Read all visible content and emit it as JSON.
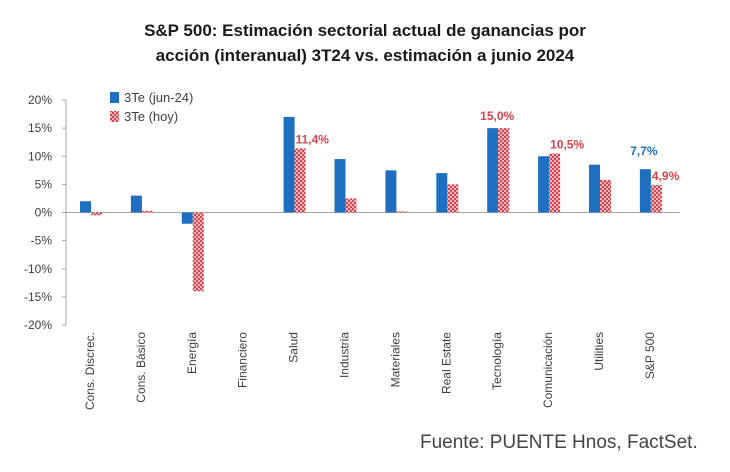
{
  "chart_data": {
    "type": "bar",
    "title_lines": [
      "S&P 500: Estimación sectorial actual de ganancias por",
      "acción (interanual) 3T24 vs. estimación a junio 2024"
    ],
    "categories": [
      "Cons. Discrec.",
      "Cons. Básico",
      "Energía",
      "Financiero",
      "Salud",
      "Industria",
      "Materiales",
      "Real Estate",
      "Tecnología",
      "Comunicación",
      "Utilities",
      "S&P 500"
    ],
    "series": [
      {
        "name": "3Te (jun-24)",
        "color": "#1f6fc0",
        "pattern": "solid",
        "values": [
          2.0,
          3.0,
          -2.0,
          0.0,
          17.0,
          9.5,
          7.5,
          7.0,
          15.0,
          10.0,
          8.5,
          7.7
        ]
      },
      {
        "name": "3Te (hoy)",
        "color": "#d7434d",
        "pattern": "checker",
        "values": [
          -0.5,
          0.3,
          -14.0,
          0.0,
          11.4,
          2.5,
          0.2,
          5.0,
          15.0,
          10.5,
          5.8,
          4.9
        ]
      }
    ],
    "data_labels": [
      {
        "text": "11,4%",
        "category": 4,
        "series": 1
      },
      {
        "text": "15,0%",
        "category": 8,
        "series": 1
      },
      {
        "text": "10,5%",
        "category": 9,
        "series": 1
      },
      {
        "text": "7,7%",
        "category": 11,
        "series": 0
      },
      {
        "text": "4,9%",
        "category": 11,
        "series": 1
      }
    ],
    "ylim": [
      -20,
      20
    ],
    "yticks": [
      20,
      15,
      10,
      5,
      0,
      -5,
      -10,
      -15,
      -20
    ],
    "ytick_labels": [
      "20%",
      "15%",
      "10%",
      "5%",
      "0%",
      "-5%",
      "-10%",
      "-15%",
      "-20%"
    ],
    "legend_position": "top-left",
    "grid": false
  },
  "source": "Fuente: PUENTE Hnos, FactSet."
}
